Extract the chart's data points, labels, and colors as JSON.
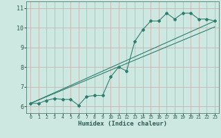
{
  "title": "",
  "xlabel": "Humidex (Indice chaleur)",
  "bg_color": "#cce8e0",
  "grid_color": "#c9ddd8",
  "line_color": "#2e7d6e",
  "xlim": [
    -0.5,
    23.5
  ],
  "ylim": [
    5.65,
    11.35
  ],
  "xticks": [
    0,
    1,
    2,
    3,
    4,
    5,
    6,
    7,
    8,
    9,
    10,
    11,
    12,
    13,
    14,
    15,
    16,
    17,
    18,
    19,
    20,
    21,
    22,
    23
  ],
  "yticks": [
    6,
    7,
    8,
    9,
    10,
    11
  ],
  "data_line": [
    [
      0,
      6.15
    ],
    [
      1,
      6.15
    ],
    [
      2,
      6.3
    ],
    [
      3,
      6.4
    ],
    [
      4,
      6.35
    ],
    [
      5,
      6.35
    ],
    [
      6,
      6.05
    ],
    [
      7,
      6.5
    ],
    [
      8,
      6.55
    ],
    [
      9,
      6.55
    ],
    [
      10,
      7.5
    ],
    [
      11,
      8.0
    ],
    [
      12,
      7.8
    ],
    [
      13,
      9.3
    ],
    [
      14,
      9.9
    ],
    [
      15,
      10.35
    ],
    [
      16,
      10.35
    ],
    [
      17,
      10.75
    ],
    [
      18,
      10.45
    ],
    [
      19,
      10.75
    ],
    [
      20,
      10.75
    ],
    [
      21,
      10.45
    ],
    [
      22,
      10.45
    ],
    [
      23,
      10.35
    ]
  ],
  "trend_line1": [
    [
      0,
      6.15
    ],
    [
      23,
      10.05
    ]
  ],
  "trend_line2": [
    [
      0,
      6.15
    ],
    [
      23,
      10.35
    ]
  ]
}
